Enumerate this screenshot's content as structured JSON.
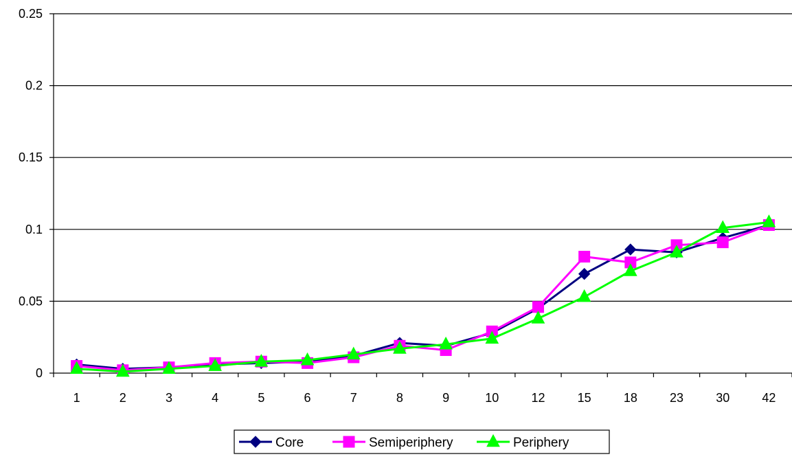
{
  "chart_data": {
    "type": "line",
    "title": "",
    "xlabel": "",
    "ylabel": "",
    "categories": [
      "1",
      "2",
      "3",
      "4",
      "5",
      "6",
      "7",
      "8",
      "9",
      "10",
      "12",
      "15",
      "18",
      "23",
      "30",
      "42"
    ],
    "ylim": [
      0,
      0.25
    ],
    "yticks": [
      0,
      0.05,
      0.1,
      0.15,
      0.2,
      0.25
    ],
    "ytick_labels": [
      "0",
      "0.05",
      "0.1",
      "0.15",
      "0.2",
      "0.25"
    ],
    "grid": "horizontal",
    "legend_position": "bottom",
    "series": [
      {
        "name": "Core",
        "color": "#000080",
        "marker": "diamond",
        "values": [
          0.006,
          0.003,
          0.004,
          0.006,
          0.007,
          0.008,
          0.012,
          0.021,
          0.019,
          0.028,
          0.045,
          0.069,
          0.086,
          0.084,
          0.094,
          0.103
        ]
      },
      {
        "name": "Semiperiphery",
        "color": "#FF00FF",
        "marker": "square",
        "values": [
          0.005,
          0.002,
          0.004,
          0.007,
          0.008,
          0.007,
          0.011,
          0.019,
          0.016,
          0.029,
          0.046,
          0.081,
          0.077,
          0.089,
          0.091,
          0.103
        ]
      },
      {
        "name": "Periphery",
        "color": "#00FF00",
        "marker": "triangle",
        "values": [
          0.003,
          0.001,
          0.003,
          0.005,
          0.008,
          0.009,
          0.013,
          0.017,
          0.02,
          0.024,
          0.038,
          0.053,
          0.071,
          0.084,
          0.101,
          0.105
        ]
      }
    ]
  }
}
